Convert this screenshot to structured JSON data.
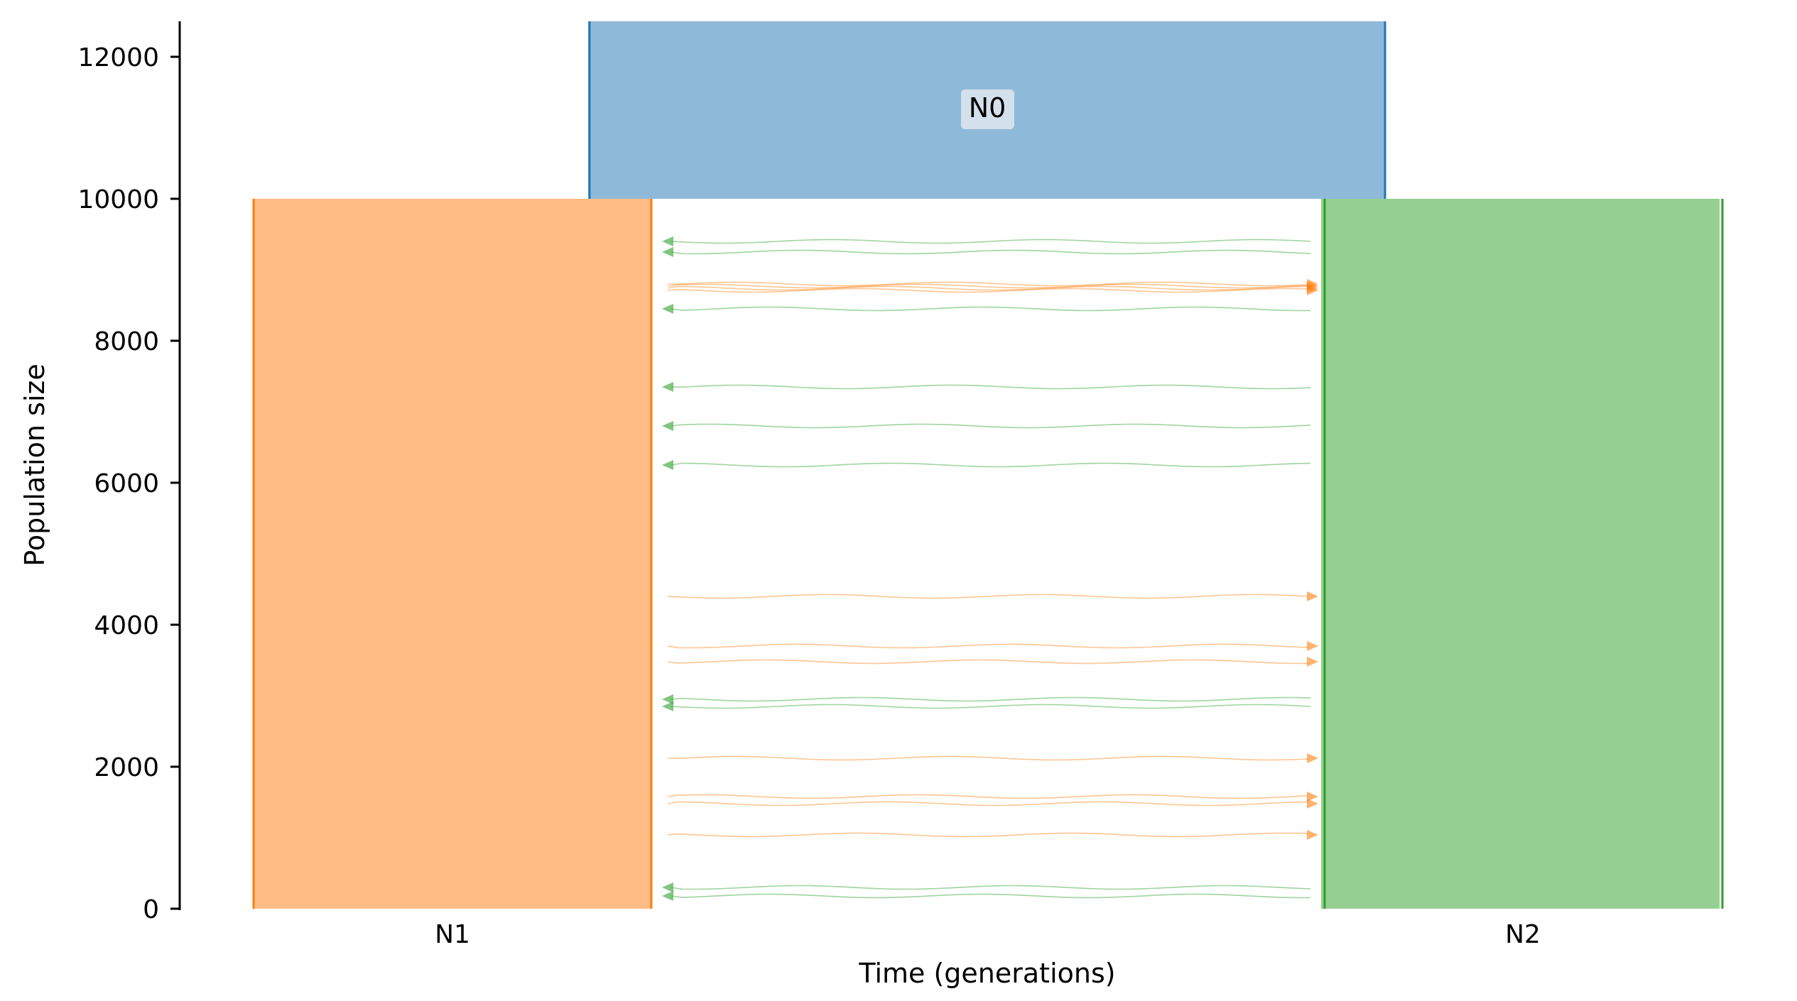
{
  "axes": {
    "xlabel": "Time (generations)",
    "ylabel": "Population size",
    "y_ticks": [
      "0",
      "2000",
      "4000",
      "6000",
      "8000",
      "10000",
      "12000"
    ]
  },
  "demes": [
    {
      "name": "N0",
      "size": 12500,
      "size_bottom": 10000,
      "color": "#1f77b4",
      "fill": "#8fb9d9"
    },
    {
      "name": "N1",
      "size": 10000,
      "color": "#ff7f0e",
      "fill": "#fdbd85"
    },
    {
      "name": "N2",
      "size": 10000,
      "color": "#2ca02c",
      "fill": "#96cf92"
    }
  ],
  "migrations": {
    "n2_to_n1_color": "#2ca02c",
    "n1_to_n2_color": "#ff7f0e",
    "n2_to_n1_levels": [
      9400,
      9250,
      8450,
      7350,
      6800,
      6250,
      2950,
      2850,
      300,
      180
    ],
    "n1_to_n2_levels": [
      8800,
      8770,
      8740,
      8710,
      4400,
      3700,
      3480,
      2120,
      1580,
      1480,
      1040
    ]
  }
}
